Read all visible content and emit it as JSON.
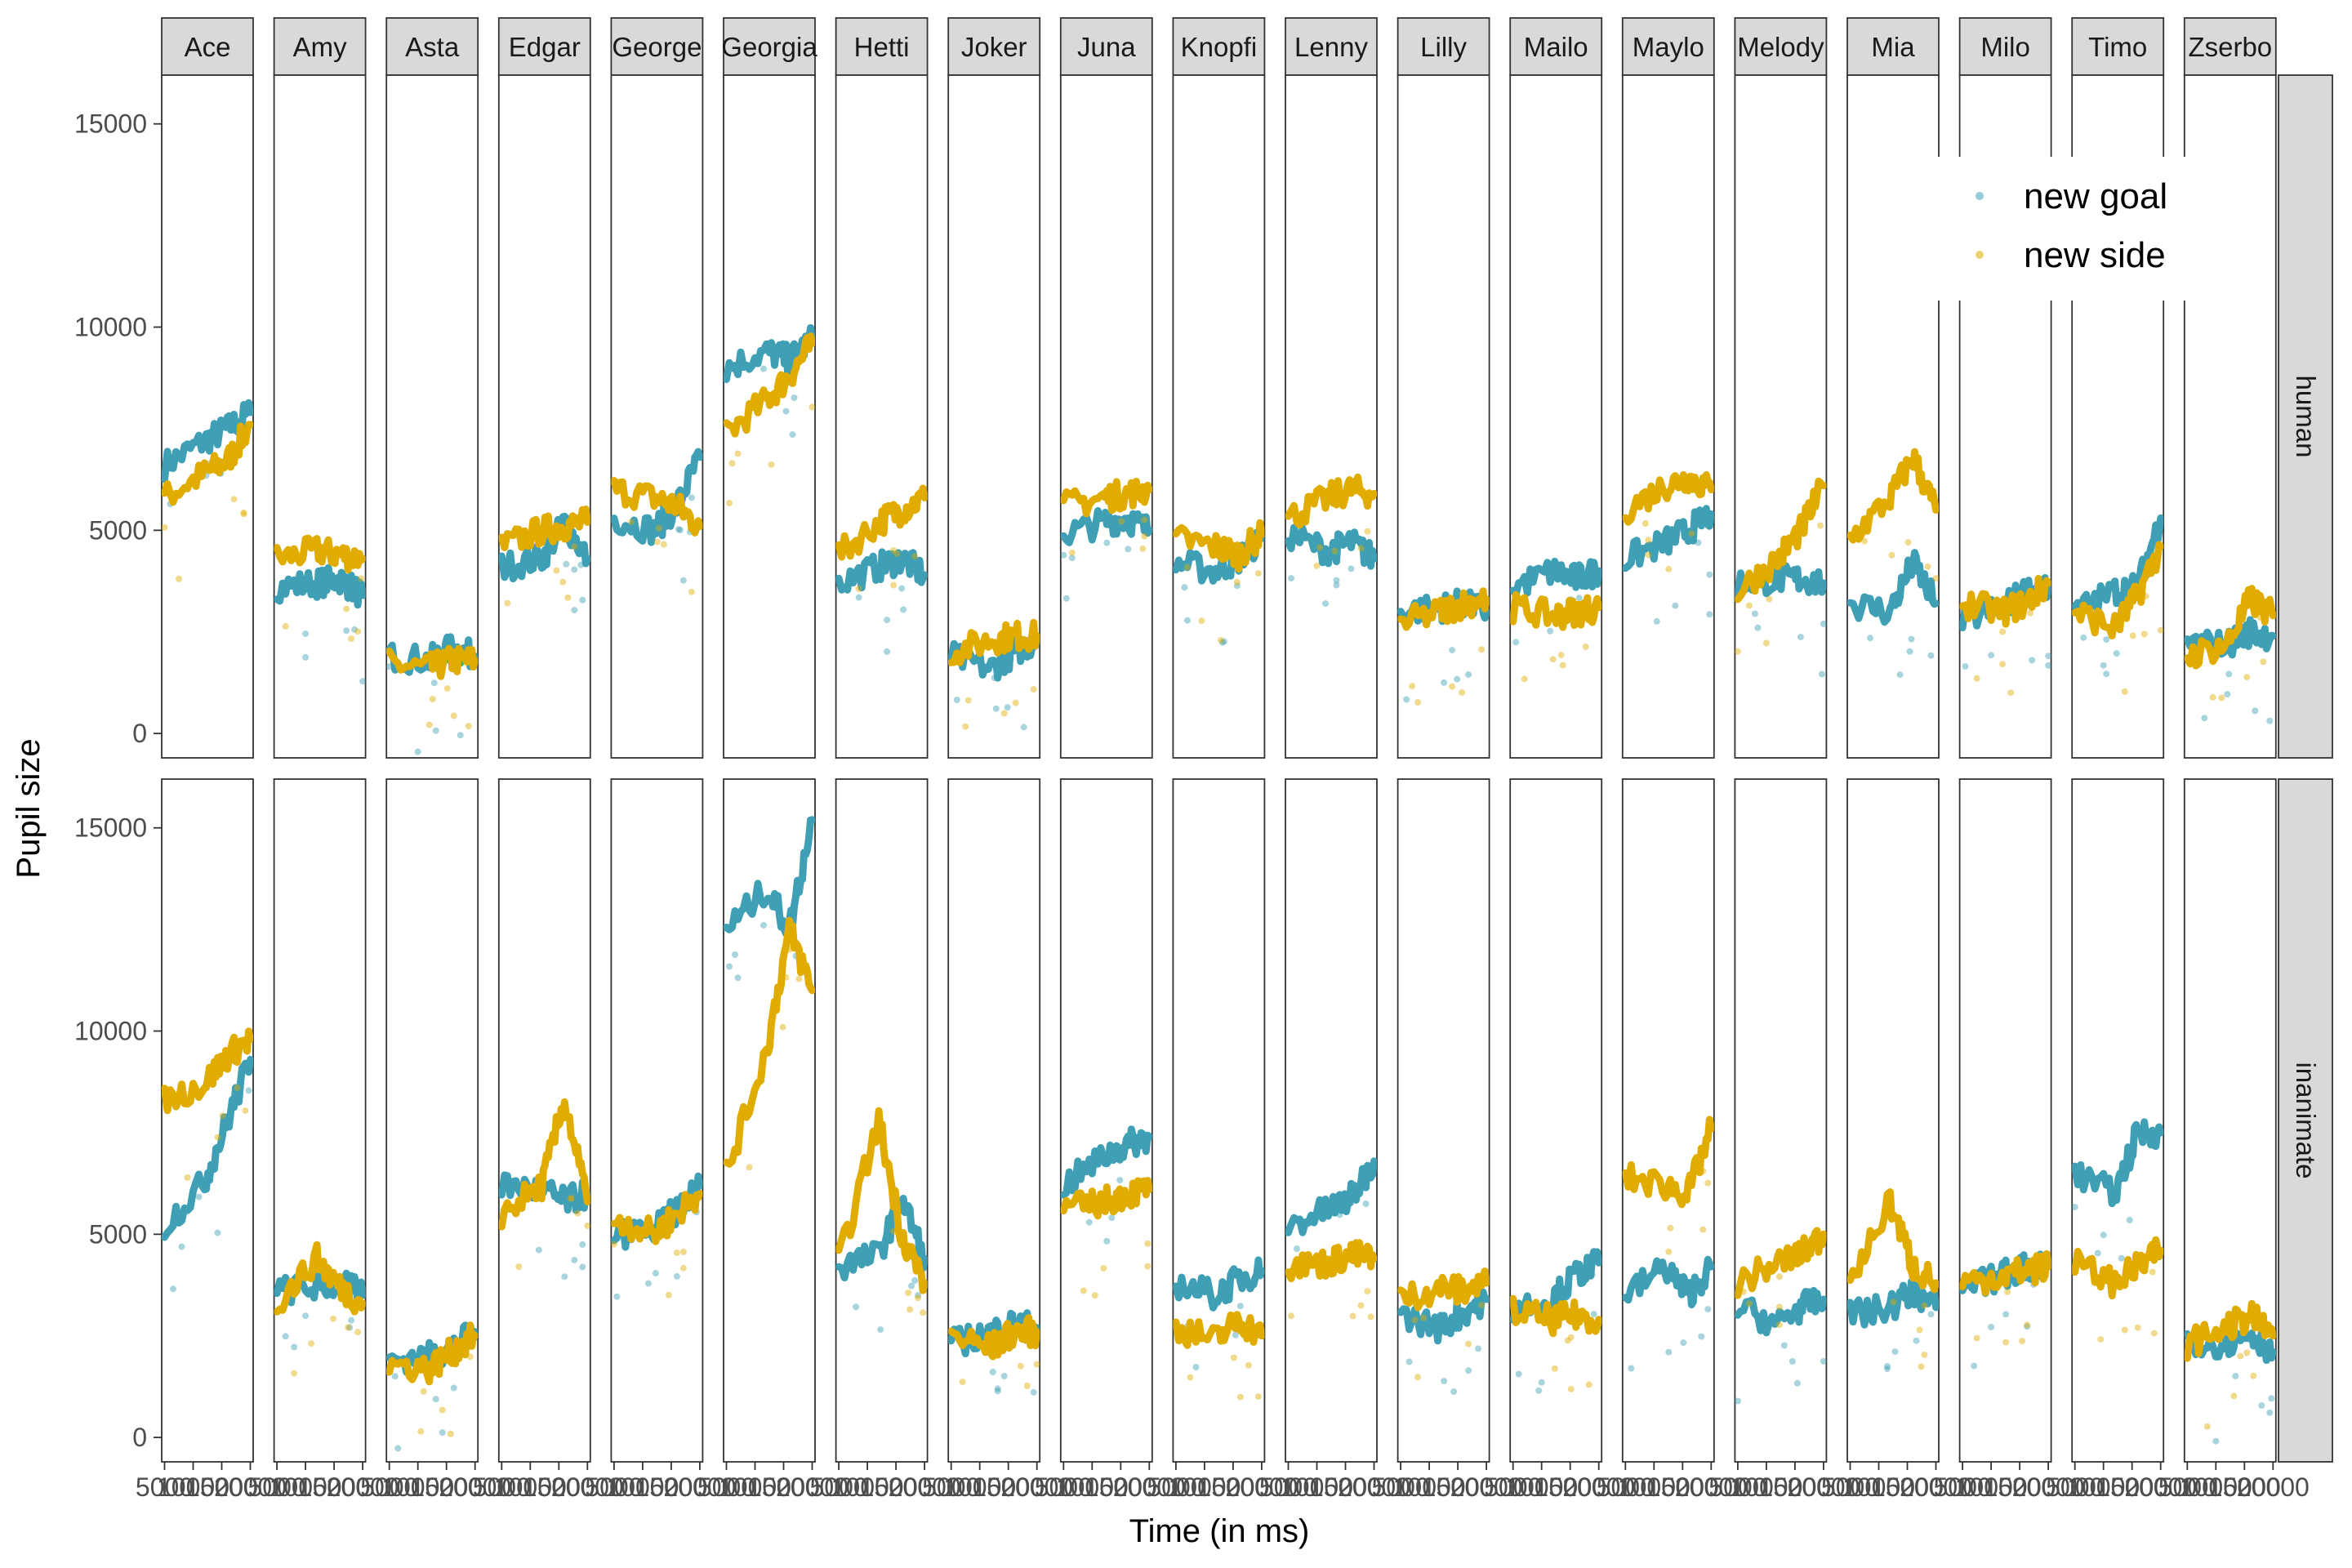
{
  "chart_data": {
    "type": "scatter",
    "xlabel": "Time (in ms)",
    "ylabel": "Pupil size",
    "ylim": [
      -600,
      16200
    ],
    "yticks": [
      0,
      5000,
      10000,
      15000
    ],
    "xtick_labels": [
      "5000",
      "10000",
      "15000",
      "20000"
    ],
    "xtick_values": [
      5000,
      10000,
      15000,
      20000
    ],
    "xlim": [
      4500,
      20500
    ],
    "facet_cols": [
      "Ace",
      "Amy",
      "Asta",
      "Edgar",
      "George",
      "Georgia",
      "Hetti",
      "Joker",
      "Juna",
      "Knopfi",
      "Lenny",
      "Lilly",
      "Mailo",
      "Maylo",
      "Melody",
      "Mia",
      "Milo",
      "Timo",
      "Zserbo"
    ],
    "facet_rows": [
      "human",
      "inanimate"
    ],
    "legend": {
      "position": "top-right",
      "entries": [
        "new goal",
        "new side"
      ]
    },
    "colors": {
      "new goal": "#3f9fb5",
      "new side": "#e0ac00"
    },
    "series": [
      {
        "name": "new goal",
        "panels": {
          "human": [
            [
              5000,
              6600,
              12000,
              7200,
              16000,
              7500,
              20000,
              7900
            ],
            [
              5000,
              3600,
              12000,
              3700,
              16000,
              3800,
              20000,
              3400
            ],
            [
              5000,
              1900,
              12000,
              1800,
              16000,
              2100,
              20000,
              1900
            ],
            [
              5000,
              4100,
              12000,
              4300,
              16000,
              5200,
              20000,
              4300
            ],
            [
              5000,
              5300,
              12000,
              5000,
              16000,
              5600,
              20000,
              6800
            ],
            [
              5000,
              9000,
              12000,
              9400,
              16000,
              9200,
              20000,
              9700
            ],
            [
              5000,
              3700,
              12000,
              4100,
              16000,
              4300,
              20000,
              3900
            ],
            [
              5000,
              1900,
              12000,
              1600,
              16000,
              2000,
              20000,
              2300
            ],
            [
              5000,
              4900,
              12000,
              5200,
              16000,
              5300,
              20000,
              5000
            ],
            [
              5000,
              4200,
              12000,
              4000,
              16000,
              4300,
              20000,
              4800
            ],
            [
              5000,
              4900,
              12000,
              4500,
              16000,
              4700,
              20000,
              4300
            ],
            [
              5000,
              3000,
              12000,
              3100,
              16000,
              3200,
              20000,
              3000
            ],
            [
              5000,
              3600,
              12000,
              4000,
              16000,
              3800,
              20000,
              4000
            ],
            [
              5000,
              4300,
              12000,
              4700,
              16000,
              5000,
              20000,
              5400
            ],
            [
              5000,
              3700,
              12000,
              3800,
              16000,
              3800,
              20000,
              3700
            ],
            [
              5000,
              3200,
              12000,
              3000,
              16000,
              4200,
              20000,
              3200
            ],
            [
              5000,
              2800,
              12000,
              3100,
              16000,
              3500,
              20000,
              3600
            ],
            [
              5000,
              3000,
              12000,
              3500,
              16000,
              3600,
              20000,
              5300
            ],
            [
              5000,
              2200,
              12000,
              2200,
              16000,
              2500,
              20000,
              2400
            ]
          ],
          "inanimate": [
            [
              5000,
              5200,
              12000,
              6300,
              16000,
              7800,
              20000,
              9300
            ],
            [
              5000,
              3600,
              12000,
              3700,
              16000,
              3800,
              20000,
              3500
            ],
            [
              5000,
              1900,
              12000,
              2000,
              16000,
              2200,
              20000,
              2600
            ],
            [
              5000,
              6200,
              12000,
              6100,
              16000,
              5800,
              20000,
              6000
            ],
            [
              5000,
              5000,
              12000,
              5100,
              16000,
              5600,
              20000,
              6200
            ],
            [
              5000,
              12500,
              12000,
              13500,
              16000,
              12500,
              20000,
              15200
            ],
            [
              5000,
              4200,
              12000,
              4500,
              16000,
              5900,
              20000,
              4400
            ],
            [
              5000,
              2300,
              12000,
              2600,
              16000,
              2800,
              20000,
              2700
            ],
            [
              5000,
              6200,
              12000,
              6900,
              16000,
              7200,
              20000,
              7400
            ],
            [
              5000,
              3800,
              12000,
              3500,
              16000,
              3900,
              20000,
              4100
            ],
            [
              5000,
              5200,
              12000,
              5600,
              16000,
              5900,
              20000,
              6800
            ],
            [
              5000,
              3000,
              12000,
              2700,
              16000,
              3100,
              20000,
              3400
            ],
            [
              5000,
              3200,
              12000,
              3400,
              16000,
              4000,
              20000,
              4300
            ],
            [
              5000,
              3500,
              12000,
              4200,
              16000,
              3500,
              20000,
              4200
            ],
            [
              5000,
              3200,
              12000,
              2800,
              16000,
              3200,
              20000,
              3400
            ],
            [
              5000,
              3000,
              12000,
              3200,
              16000,
              3600,
              20000,
              3200
            ],
            [
              5000,
              3600,
              12000,
              4000,
              16000,
              4200,
              20000,
              4300
            ],
            [
              5000,
              6500,
              12000,
              6000,
              16000,
              7500,
              20000,
              7500
            ],
            [
              5000,
              2400,
              12000,
              2300,
              16000,
              2600,
              20000,
              2100
            ]
          ]
        }
      },
      {
        "name": "new side",
        "panels": {
          "human": [
            [
              5000,
              5800,
              12000,
              6400,
              16000,
              6700,
              20000,
              7600
            ],
            [
              5000,
              4300,
              12000,
              4500,
              16000,
              4400,
              20000,
              4300
            ],
            [
              5000,
              1700,
              12000,
              1600,
              16000,
              1800,
              20000,
              1800
            ],
            [
              5000,
              4600,
              12000,
              5000,
              16000,
              5100,
              20000,
              5200
            ],
            [
              5000,
              6000,
              12000,
              5800,
              16000,
              5600,
              20000,
              5100
            ],
            [
              5000,
              7400,
              12000,
              8200,
              16000,
              8800,
              20000,
              9600
            ],
            [
              5000,
              4400,
              12000,
              5200,
              16000,
              5500,
              20000,
              5800
            ],
            [
              5000,
              2000,
              12000,
              2300,
              16000,
              2400,
              20000,
              2400
            ],
            [
              5000,
              5600,
              12000,
              5800,
              16000,
              5900,
              20000,
              6000
            ],
            [
              5000,
              4800,
              12000,
              4600,
              16000,
              4400,
              20000,
              4900
            ],
            [
              5000,
              5300,
              12000,
              5800,
              16000,
              6000,
              20000,
              5900
            ],
            [
              5000,
              2700,
              12000,
              3000,
              16000,
              3200,
              20000,
              3300
            ],
            [
              5000,
              3100,
              12000,
              2900,
              16000,
              3000,
              20000,
              3100
            ],
            [
              5000,
              5500,
              12000,
              6100,
              16000,
              6300,
              20000,
              6000
            ],
            [
              5000,
              3500,
              12000,
              4300,
              16000,
              5000,
              20000,
              6100
            ],
            [
              5000,
              4800,
              12000,
              5800,
              16000,
              6800,
              20000,
              5500
            ],
            [
              5000,
              3200,
              12000,
              3000,
              16000,
              3200,
              20000,
              3700
            ],
            [
              5000,
              3000,
              12000,
              2600,
              16000,
              3400,
              20000,
              4600
            ],
            [
              5000,
              1900,
              12000,
              2200,
              16000,
              3300,
              20000,
              2900
            ]
          ],
          "inanimate": [
            [
              5000,
              8300,
              12000,
              8700,
              16000,
              9400,
              20000,
              9800
            ],
            [
              5000,
              3300,
              12000,
              4400,
              16000,
              3700,
              20000,
              3300
            ],
            [
              5000,
              1800,
              12000,
              1700,
              16000,
              2100,
              20000,
              2500
            ],
            [
              5000,
              5500,
              12000,
              6200,
              16000,
              8300,
              20000,
              5800
            ],
            [
              5000,
              5400,
              12000,
              5000,
              16000,
              5500,
              20000,
              6000
            ],
            [
              5000,
              6500,
              12000,
              9500,
              16000,
              12500,
              20000,
              11000
            ],
            [
              5000,
              4300,
              12000,
              7800,
              16000,
              5000,
              20000,
              3800
            ],
            [
              5000,
              2500,
              12000,
              2200,
              16000,
              2600,
              20000,
              2600
            ],
            [
              5000,
              5600,
              12000,
              5800,
              16000,
              6000,
              20000,
              6100
            ],
            [
              5000,
              2700,
              12000,
              2400,
              16000,
              2900,
              20000,
              2500
            ],
            [
              5000,
              4200,
              12000,
              4300,
              16000,
              4500,
              20000,
              4400
            ],
            [
              5000,
              3400,
              12000,
              3700,
              16000,
              3600,
              20000,
              3800
            ],
            [
              5000,
              3100,
              12000,
              2900,
              16000,
              3000,
              20000,
              2900
            ],
            [
              5000,
              6400,
              12000,
              6200,
              16000,
              6000,
              20000,
              7600
            ],
            [
              5000,
              3800,
              12000,
              4300,
              16000,
              4500,
              20000,
              5000
            ],
            [
              5000,
              3800,
              12000,
              5800,
              16000,
              4200,
              20000,
              3800
            ],
            [
              5000,
              3800,
              12000,
              4000,
              16000,
              4100,
              20000,
              4200
            ],
            [
              5000,
              4300,
              12000,
              3800,
              16000,
              4200,
              20000,
              4600
            ],
            [
              5000,
              2300,
              12000,
              2700,
              16000,
              3000,
              20000,
              2500
            ]
          ]
        }
      }
    ]
  }
}
